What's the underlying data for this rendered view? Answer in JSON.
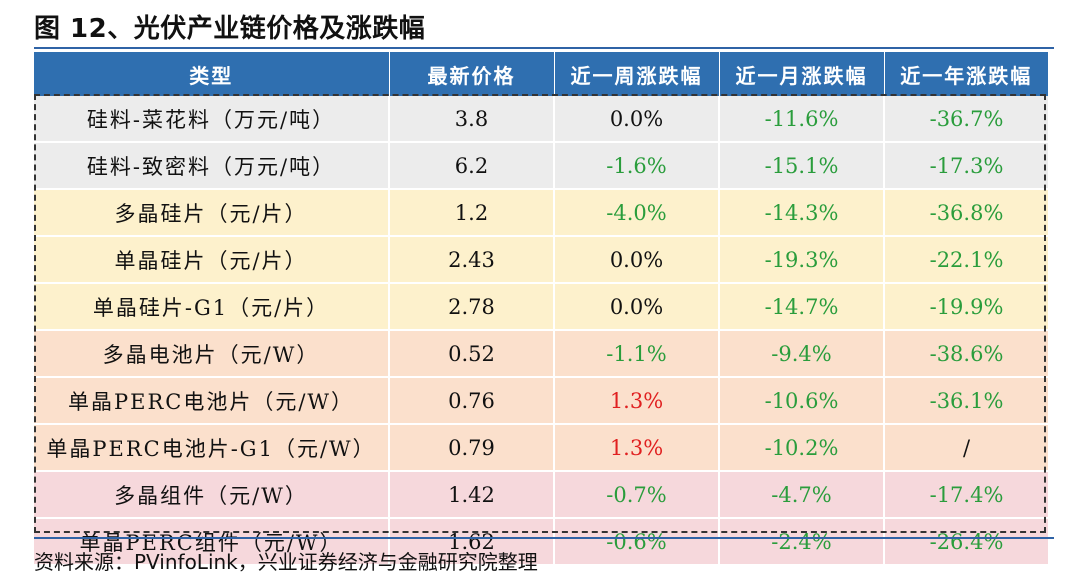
{
  "title": "图 12、光伏产业链价格及涨跌幅",
  "headers": [
    "类型",
    "最新价格",
    "近一周涨跌幅",
    "近一月涨跌幅",
    "近一年涨跌幅"
  ],
  "rows": [
    {
      "name": "硅料-菜花料（万元/吨）",
      "price": "3.8",
      "week": "0.0%",
      "month": "-11.6%",
      "year": "-36.7%"
    },
    {
      "name": "硅料-致密料（万元/吨）",
      "price": "6.2",
      "week": "-1.6%",
      "month": "-15.1%",
      "year": "-17.3%"
    },
    {
      "name": "多晶硅片（元/片）",
      "price": "1.2",
      "week": "-4.0%",
      "month": "-14.3%",
      "year": "-36.8%"
    },
    {
      "name": "单晶硅片（元/片）",
      "price": "2.43",
      "week": "0.0%",
      "month": "-19.3%",
      "year": "-22.1%"
    },
    {
      "name": "单晶硅片-G1（元/片）",
      "price": "2.78",
      "week": "0.0%",
      "month": "-14.7%",
      "year": "-19.9%"
    },
    {
      "name": "多晶电池片（元/W）",
      "price": "0.52",
      "week": "-1.1%",
      "month": "-9.4%",
      "year": "-38.6%"
    },
    {
      "name": "单晶PERC电池片（元/W）",
      "price": "0.76",
      "week": "1.3%",
      "month": "-10.6%",
      "year": "-36.1%"
    },
    {
      "name": "单晶PERC电池片-G1（元/W）",
      "price": "0.79",
      "week": "1.3%",
      "month": "-10.2%",
      "year": "/"
    },
    {
      "name": "多晶组件（元/W）",
      "price": "1.42",
      "week": "-0.7%",
      "month": "-4.7%",
      "year": "-17.4%"
    },
    {
      "name": "单晶PERC组件（元/W）",
      "price": "1.62",
      "week": "-0.6%",
      "month": "-2.4%",
      "year": "-26.4%"
    }
  ],
  "colors": {
    "header_bg": "#2f6fb0",
    "negative": "#2a9d3c",
    "positive": "#e02020",
    "group_silicon": "#ececec",
    "group_wafer": "#fdf1cc",
    "group_cell": "#fbe0cc",
    "group_module": "#f6d8dc"
  },
  "source": "资料来源：PVinfoLink，兴业证券经济与金融研究院整理"
}
